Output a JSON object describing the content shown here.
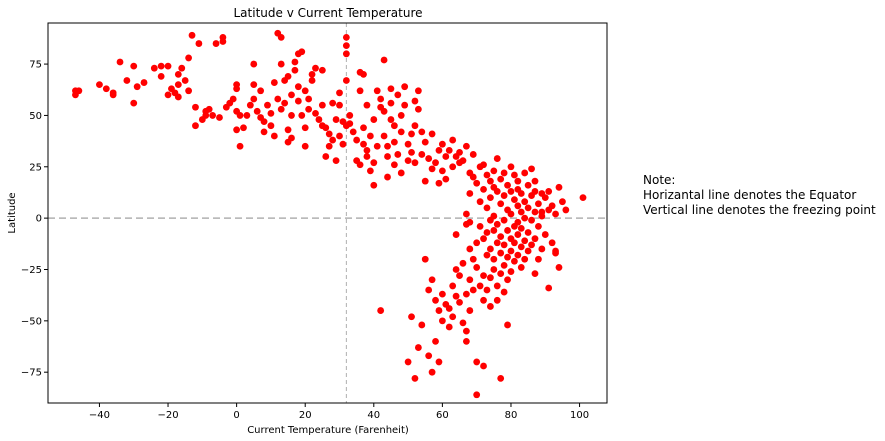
{
  "chart_data": {
    "type": "scatter",
    "title": "Latitude v Current Temperature",
    "xlabel": "Current Temperature (Farenheit)",
    "ylabel": "Latitude",
    "xlim": [
      -55,
      108
    ],
    "ylim": [
      -90,
      95
    ],
    "xticks": [
      -40,
      -20,
      0,
      20,
      40,
      60,
      80,
      100
    ],
    "yticks": [
      -75,
      -50,
      -25,
      0,
      25,
      50,
      75
    ],
    "grid": false,
    "marker_color": "#ff0000",
    "reference_lines": [
      {
        "orientation": "horizontal",
        "value": 0,
        "style": "dashed",
        "color": "#b0b0b0"
      },
      {
        "orientation": "vertical",
        "value": 32,
        "style": "dashed",
        "color": "#b0b0b0"
      }
    ],
    "points": [
      [
        -47,
        62
      ],
      [
        -47,
        60
      ],
      [
        -46,
        62
      ],
      [
        -40,
        65
      ],
      [
        -38,
        63
      ],
      [
        -36,
        61
      ],
      [
        -36,
        60
      ],
      [
        -34,
        76
      ],
      [
        -32,
        67
      ],
      [
        -30,
        74
      ],
      [
        -30,
        56
      ],
      [
        -29,
        64
      ],
      [
        -27,
        66
      ],
      [
        -24,
        73
      ],
      [
        -22,
        69
      ],
      [
        -22,
        74
      ],
      [
        -20,
        74
      ],
      [
        -20,
        60
      ],
      [
        -19,
        63
      ],
      [
        -18,
        61
      ],
      [
        -17,
        65
      ],
      [
        -17,
        59
      ],
      [
        -17,
        70
      ],
      [
        -16,
        73
      ],
      [
        -15,
        67
      ],
      [
        -14,
        62
      ],
      [
        -14,
        78
      ],
      [
        -13,
        89
      ],
      [
        -12,
        54
      ],
      [
        -12,
        45
      ],
      [
        -11,
        85
      ],
      [
        -10,
        48
      ],
      [
        -9,
        50
      ],
      [
        -9,
        52
      ],
      [
        -8,
        53
      ],
      [
        -7,
        50
      ],
      [
        -6,
        85
      ],
      [
        -5,
        49
      ],
      [
        -4,
        88
      ],
      [
        -4,
        86
      ],
      [
        -3,
        54
      ],
      [
        -2,
        56
      ],
      [
        -1,
        58
      ],
      [
        0,
        63
      ],
      [
        0,
        65
      ],
      [
        0,
        52
      ],
      [
        0,
        43
      ],
      [
        1,
        50
      ],
      [
        1,
        35
      ],
      [
        2,
        44
      ],
      [
        3,
        50
      ],
      [
        4,
        55
      ],
      [
        5,
        58
      ],
      [
        5,
        65
      ],
      [
        5,
        75
      ],
      [
        6,
        52
      ],
      [
        7,
        49
      ],
      [
        7,
        62
      ],
      [
        8,
        42
      ],
      [
        8,
        47
      ],
      [
        9,
        55
      ],
      [
        10,
        51
      ],
      [
        10,
        45
      ],
      [
        11,
        40
      ],
      [
        11,
        66
      ],
      [
        12,
        90
      ],
      [
        12,
        58
      ],
      [
        13,
        88
      ],
      [
        13,
        75
      ],
      [
        13,
        53
      ],
      [
        14,
        56
      ],
      [
        14,
        67
      ],
      [
        15,
        69
      ],
      [
        15,
        43
      ],
      [
        15,
        37
      ],
      [
        16,
        39
      ],
      [
        16,
        50
      ],
      [
        16,
        60
      ],
      [
        17,
        72
      ],
      [
        17,
        76
      ],
      [
        18,
        80
      ],
      [
        18,
        64
      ],
      [
        18,
        57
      ],
      [
        19,
        81
      ],
      [
        19,
        50
      ],
      [
        20,
        44
      ],
      [
        20,
        35
      ],
      [
        20,
        62
      ],
      [
        21,
        58
      ],
      [
        21,
        53
      ],
      [
        22,
        67
      ],
      [
        22,
        70
      ],
      [
        23,
        73
      ],
      [
        23,
        51
      ],
      [
        24,
        48
      ],
      [
        25,
        72
      ],
      [
        25,
        55
      ],
      [
        25,
        45
      ],
      [
        26,
        44
      ],
      [
        26,
        30
      ],
      [
        27,
        41
      ],
      [
        27,
        35
      ],
      [
        28,
        38
      ],
      [
        28,
        56
      ],
      [
        29,
        48
      ],
      [
        29,
        28
      ],
      [
        30,
        61
      ],
      [
        30,
        55
      ],
      [
        30,
        40
      ],
      [
        31,
        47
      ],
      [
        31,
        36
      ],
      [
        32,
        45
      ],
      [
        32,
        67
      ],
      [
        32,
        80
      ],
      [
        32,
        88
      ],
      [
        32,
        84
      ],
      [
        33,
        50
      ],
      [
        33,
        46
      ],
      [
        34,
        42
      ],
      [
        35,
        38
      ],
      [
        35,
        28
      ],
      [
        36,
        26
      ],
      [
        36,
        71
      ],
      [
        36,
        62
      ],
      [
        37,
        70
      ],
      [
        37,
        44
      ],
      [
        37,
        36
      ],
      [
        38,
        55
      ],
      [
        38,
        33
      ],
      [
        38,
        30
      ],
      [
        39,
        23
      ],
      [
        39,
        40
      ],
      [
        40,
        27
      ],
      [
        40,
        16
      ],
      [
        40,
        48
      ],
      [
        41,
        62
      ],
      [
        41,
        35
      ],
      [
        42,
        58
      ],
      [
        42,
        54
      ],
      [
        42,
        -45
      ],
      [
        43,
        77
      ],
      [
        43,
        52
      ],
      [
        43,
        40
      ],
      [
        44,
        35
      ],
      [
        44,
        30
      ],
      [
        44,
        20
      ],
      [
        45,
        48
      ],
      [
        45,
        63
      ],
      [
        45,
        56
      ],
      [
        46,
        45
      ],
      [
        46,
        37
      ],
      [
        46,
        26
      ],
      [
        47,
        60
      ],
      [
        47,
        31
      ],
      [
        48,
        50
      ],
      [
        48,
        42
      ],
      [
        48,
        22
      ],
      [
        49,
        55
      ],
      [
        49,
        64
      ],
      [
        50,
        36
      ],
      [
        50,
        28
      ],
      [
        50,
        -70
      ],
      [
        51,
        41
      ],
      [
        51,
        32
      ],
      [
        51,
        -48
      ],
      [
        52,
        57
      ],
      [
        52,
        45
      ],
      [
        52,
        27
      ],
      [
        52,
        -78
      ],
      [
        53,
        53
      ],
      [
        53,
        62
      ],
      [
        53,
        -63
      ],
      [
        54,
        42
      ],
      [
        54,
        31
      ],
      [
        54,
        -52
      ],
      [
        55,
        37
      ],
      [
        55,
        18
      ],
      [
        55,
        -20
      ],
      [
        56,
        29
      ],
      [
        56,
        -35
      ],
      [
        56,
        -67
      ],
      [
        57,
        41
      ],
      [
        57,
        24
      ],
      [
        57,
        -30
      ],
      [
        57,
        -75
      ],
      [
        58,
        27
      ],
      [
        58,
        -40
      ],
      [
        58,
        -60
      ],
      [
        59,
        33
      ],
      [
        59,
        17
      ],
      [
        59,
        -45
      ],
      [
        59,
        -70
      ],
      [
        60,
        36
      ],
      [
        60,
        23
      ],
      [
        60,
        -37
      ],
      [
        60,
        -50
      ],
      [
        61,
        30
      ],
      [
        61,
        19
      ],
      [
        61,
        -42
      ],
      [
        62,
        33
      ],
      [
        62,
        -44
      ],
      [
        62,
        -53
      ],
      [
        63,
        38
      ],
      [
        63,
        25
      ],
      [
        63,
        -33
      ],
      [
        63,
        -48
      ],
      [
        64,
        30
      ],
      [
        64,
        -25
      ],
      [
        64,
        -38
      ],
      [
        64,
        -8
      ],
      [
        65,
        27
      ],
      [
        65,
        32
      ],
      [
        65,
        -28
      ],
      [
        65,
        -41
      ],
      [
        66,
        28
      ],
      [
        66,
        -22
      ],
      [
        66,
        -51
      ],
      [
        67,
        35
      ],
      [
        67,
        2
      ],
      [
        67,
        -3
      ],
      [
        67,
        -37
      ],
      [
        67,
        -55
      ],
      [
        67,
        -60
      ],
      [
        68,
        22
      ],
      [
        68,
        12
      ],
      [
        68,
        -2
      ],
      [
        68,
        -15
      ],
      [
        68,
        -30
      ],
      [
        68,
        -45
      ],
      [
        69,
        31
      ],
      [
        69,
        20
      ],
      [
        69,
        -20
      ],
      [
        69,
        -35
      ],
      [
        70,
        17
      ],
      [
        70,
        -12
      ],
      [
        70,
        -24
      ],
      [
        70,
        -70
      ],
      [
        70,
        -86
      ],
      [
        71,
        25
      ],
      [
        71,
        8
      ],
      [
        71,
        -4
      ],
      [
        71,
        -33
      ],
      [
        72,
        26
      ],
      [
        72,
        14
      ],
      [
        72,
        -10
      ],
      [
        72,
        -28
      ],
      [
        72,
        -40
      ],
      [
        72,
        -72
      ],
      [
        73,
        21
      ],
      [
        73,
        5
      ],
      [
        73,
        -7
      ],
      [
        73,
        -18
      ],
      [
        73,
        -35
      ],
      [
        74,
        18
      ],
      [
        74,
        10
      ],
      [
        74,
        -1
      ],
      [
        74,
        -15
      ],
      [
        74,
        -29
      ],
      [
        74,
        -43
      ],
      [
        75,
        23
      ],
      [
        75,
        15
      ],
      [
        75,
        1
      ],
      [
        75,
        -6
      ],
      [
        75,
        -20
      ],
      [
        75,
        -25
      ],
      [
        76,
        29
      ],
      [
        76,
        13
      ],
      [
        76,
        -3
      ],
      [
        76,
        -12
      ],
      [
        76,
        -33
      ],
      [
        76,
        -40
      ],
      [
        77,
        19
      ],
      [
        77,
        7
      ],
      [
        77,
        -9
      ],
      [
        77,
        -17
      ],
      [
        77,
        -27
      ],
      [
        77,
        -78
      ],
      [
        78,
        22
      ],
      [
        78,
        11
      ],
      [
        78,
        -1
      ],
      [
        78,
        -13
      ],
      [
        78,
        -23
      ],
      [
        78,
        -36
      ],
      [
        79,
        16
      ],
      [
        79,
        4
      ],
      [
        79,
        -6
      ],
      [
        79,
        -19
      ],
      [
        79,
        -30
      ],
      [
        79,
        -52
      ],
      [
        80,
        25
      ],
      [
        80,
        13
      ],
      [
        80,
        2
      ],
      [
        80,
        -10
      ],
      [
        80,
        -16
      ],
      [
        80,
        -26
      ],
      [
        81,
        21
      ],
      [
        81,
        9
      ],
      [
        81,
        -4
      ],
      [
        81,
        -12
      ],
      [
        81,
        -21
      ],
      [
        82,
        18
      ],
      [
        82,
        14
      ],
      [
        82,
        6
      ],
      [
        82,
        -2
      ],
      [
        82,
        -8
      ],
      [
        82,
        -18
      ],
      [
        83,
        12
      ],
      [
        83,
        3
      ],
      [
        83,
        -5
      ],
      [
        83,
        -14
      ],
      [
        83,
        -24
      ],
      [
        84,
        22
      ],
      [
        84,
        8
      ],
      [
        84,
        0
      ],
      [
        84,
        -11
      ],
      [
        84,
        -20
      ],
      [
        85,
        16
      ],
      [
        85,
        5
      ],
      [
        85,
        -7
      ],
      [
        85,
        -16
      ],
      [
        86,
        24
      ],
      [
        86,
        11
      ],
      [
        86,
        -1
      ],
      [
        86,
        -13
      ],
      [
        87,
        13
      ],
      [
        87,
        3
      ],
      [
        87,
        -10
      ],
      [
        87,
        -27
      ],
      [
        88,
        7
      ],
      [
        88,
        -4
      ],
      [
        88,
        -20
      ],
      [
        89,
        12
      ],
      [
        89,
        1
      ],
      [
        89,
        -15
      ],
      [
        90,
        10
      ],
      [
        90,
        -8
      ],
      [
        91,
        4
      ],
      [
        91,
        -34
      ],
      [
        92,
        6
      ],
      [
        92,
        -12
      ],
      [
        93,
        2
      ],
      [
        93,
        -17
      ],
      [
        94,
        15
      ],
      [
        94,
        -24
      ],
      [
        95,
        8
      ],
      [
        96,
        4
      ],
      [
        101,
        10
      ],
      [
        93,
        -16
      ],
      [
        91,
        13
      ],
      [
        89,
        3
      ],
      [
        87,
        18
      ]
    ]
  },
  "note": {
    "heading": "Note:",
    "line1": "Horizantal line denotes the Equator",
    "line2": "Vertical line denotes the freezing point"
  }
}
